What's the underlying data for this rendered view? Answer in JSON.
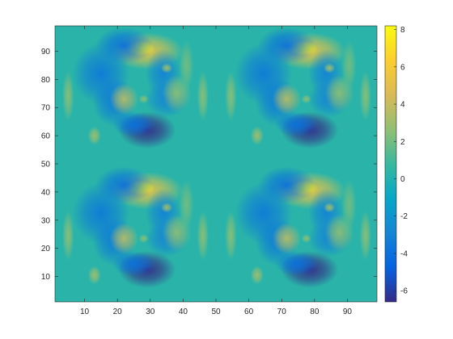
{
  "chart_data": {
    "type": "heatmap",
    "title": "",
    "xlabel": "",
    "ylabel": "",
    "xlim": [
      1,
      99
    ],
    "ylim": [
      1,
      99
    ],
    "x_ticks": [
      10,
      20,
      30,
      40,
      50,
      60,
      70,
      80,
      90
    ],
    "y_ticks": [
      10,
      20,
      30,
      40,
      50,
      60,
      70,
      80,
      90
    ],
    "colorbar": {
      "clim": [
        -6.6,
        8.2
      ],
      "ticks": [
        -6,
        -4,
        -2,
        0,
        2,
        4,
        6,
        8
      ],
      "colormap": "parula",
      "location": "right"
    },
    "colormap_stops": [
      "#352a87",
      "#0363e1",
      "#1485d4",
      "#06a7c6",
      "#38b99e",
      "#92bf73",
      "#d9ba56",
      "#fcce2e",
      "#f9fb0e"
    ],
    "background_value": 0.3,
    "tiling": "2x2 repeated pattern",
    "features": [
      {
        "kind": "blob",
        "x": 29,
        "y": 90,
        "value": 5.2,
        "sx": 5,
        "sy": 3
      },
      {
        "kind": "blob",
        "x": 27,
        "y": 91,
        "value": 8.1,
        "sx": 2,
        "sy": 1.2
      },
      {
        "kind": "blob",
        "x": 22,
        "y": 92,
        "value": -4.0,
        "sx": 4,
        "sy": 3
      },
      {
        "kind": "blob",
        "x": 15,
        "y": 82,
        "value": -3.5,
        "sx": 4,
        "sy": 5
      },
      {
        "kind": "blob",
        "x": 19,
        "y": 72,
        "value": -3.5,
        "sx": 3,
        "sy": 4
      },
      {
        "kind": "blob",
        "x": 34,
        "y": 82,
        "value": -3.0,
        "sx": 2.5,
        "sy": 4
      },
      {
        "kind": "blob",
        "x": 35,
        "y": 73,
        "value": -3.0,
        "sx": 3,
        "sy": 3
      },
      {
        "kind": "blob",
        "x": 22,
        "y": 73,
        "value": 3.5,
        "sx": 2,
        "sy": 2.5
      },
      {
        "kind": "blob",
        "x": 38,
        "y": 75,
        "value": 2.5,
        "sx": 2,
        "sy": 3
      },
      {
        "kind": "blob",
        "x": 29,
        "y": 62,
        "value": -6.6,
        "sx": 4,
        "sy": 3
      },
      {
        "kind": "blob",
        "x": 25,
        "y": 64,
        "value": -4.0,
        "sx": 3,
        "sy": 2
      },
      {
        "kind": "spot",
        "x": 13,
        "y": 60,
        "value": 3.0,
        "sx": 0.9,
        "sy": 1.5
      },
      {
        "kind": "spot",
        "x": 35,
        "y": 84,
        "value": 3.0,
        "sx": 0.8,
        "sy": 0.8
      },
      {
        "kind": "spot",
        "x": 28,
        "y": 73,
        "value": 2.5,
        "sx": 0.7,
        "sy": 0.7
      },
      {
        "kind": "spot",
        "x": 5,
        "y": 74,
        "value": 2.5,
        "sx": 0.8,
        "sy": 4
      },
      {
        "kind": "spot",
        "x": 46,
        "y": 74,
        "value": 2.5,
        "sx": 0.8,
        "sy": 4
      },
      {
        "kind": "spot",
        "x": 41,
        "y": 85,
        "value": 2.0,
        "sx": 1,
        "sy": 4
      }
    ]
  }
}
